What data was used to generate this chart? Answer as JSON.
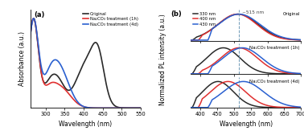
{
  "panel_a": {
    "title": "(a)",
    "xlabel": "Wavelength (nm)",
    "ylabel": "Absorbance (a.u.)",
    "xlim": [
      260,
      550
    ],
    "xticks": [
      300,
      350,
      400,
      450,
      500,
      550
    ],
    "curves": [
      {
        "label": "Original",
        "color": "#2a2a2a",
        "lw": 1.2
      },
      {
        "label": "Na₂CO₃ treatment (1h)",
        "color": "#e03030",
        "lw": 1.2
      },
      {
        "label": "Na₂CO₃ treatment (4d)",
        "color": "#2a60d0",
        "lw": 1.2
      }
    ]
  },
  "panel_b": {
    "title": "(b)",
    "xlabel": "Wavelength (nm)",
    "ylabel": "Normalized PL intensity (a.u.)",
    "xlim": [
      370,
      700
    ],
    "xticks": [
      400,
      450,
      500,
      550,
      600,
      650,
      700
    ],
    "dashed_line_x": 515,
    "dashed_label": "~515 nm",
    "subpanel_labels": [
      "Original",
      "Na₂CO₃ treatment (1h)",
      "Na₂CO₃ treatment (4d)"
    ],
    "legend_labels": [
      "330 nm",
      "400 nm",
      "430 nm"
    ],
    "legend_colors": [
      "#2a2a2a",
      "#e03030",
      "#2a60d0"
    ]
  },
  "fig_bg": "#ffffff",
  "axes_bg": "#ffffff"
}
